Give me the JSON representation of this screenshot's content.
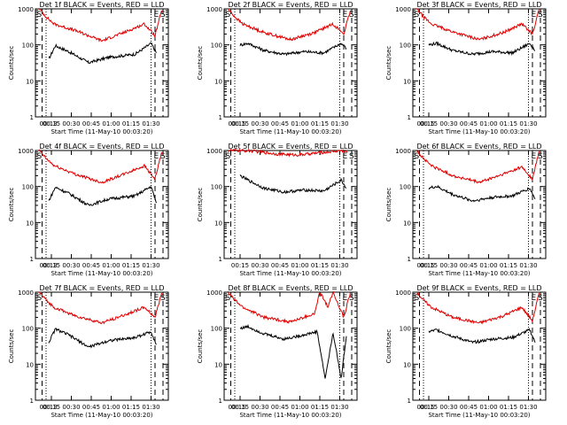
{
  "colors": {
    "events": "#000000",
    "lld": "#e00000",
    "axis": "#000000"
  },
  "shared": {
    "ylabel": "Counts/sec",
    "xlabel": "Start Time (11-May-10 00:03:20)",
    "x_ticks": [
      "00:15",
      "00:30",
      "00:45",
      "01:00",
      "01:15",
      "01:30"
    ],
    "y_ticks": [
      "1",
      "10",
      "100",
      "1000"
    ],
    "y_scale": "log",
    "ylim": [
      1,
      1000
    ]
  },
  "chart_data": [
    {
      "type": "line",
      "title": "Det 1f BLACK = Events, RED = LLD",
      "markers": [
        "S",
        "E",
        "S"
      ],
      "start_label": "00:13",
      "xlabel": "Start Time (11-May-10 00:03:20)",
      "ylabel": "Counts/sec",
      "series": [
        {
          "name": "Events",
          "x_min": [
            10,
            15,
            25,
            40,
            55,
            75,
            87,
            91
          ],
          "values": [
            40,
            95,
            65,
            32,
            45,
            55,
            110,
            60
          ]
        },
        {
          "name": "LLD",
          "x_min": [
            3,
            8,
            14,
            30,
            50,
            68,
            82,
            90,
            95
          ],
          "values": [
            1000,
            600,
            380,
            250,
            130,
            230,
            380,
            180,
            900
          ]
        }
      ]
    },
    {
      "type": "line",
      "title": "Det 2f BLACK = Events, RED = LLD",
      "markers": [
        "S",
        "E",
        "S"
      ],
      "start_label": "00:15",
      "xlabel": "Start Time (11-May-10 00:03:20)",
      "ylabel": "Counts/sec",
      "series": [
        {
          "name": "Events",
          "x_min": [
            12,
            18,
            30,
            45,
            60,
            75,
            88,
            92
          ],
          "values": [
            100,
            110,
            70,
            55,
            65,
            60,
            110,
            80
          ]
        },
        {
          "name": "LLD",
          "x_min": [
            3,
            8,
            14,
            30,
            50,
            68,
            82,
            90,
            95
          ],
          "values": [
            1000,
            600,
            380,
            220,
            140,
            220,
            380,
            200,
            900
          ]
        }
      ]
    },
    {
      "type": "line",
      "title": "Det 3f BLACK = Events, RED = LLD",
      "markers": [
        "S",
        "E",
        "S"
      ],
      "start_label": "00:15",
      "xlabel": "Start Time (11-May-10 00:03:20)",
      "ylabel": "Counts/sec",
      "series": [
        {
          "name": "Events",
          "x_min": [
            12,
            18,
            30,
            45,
            60,
            75,
            88,
            92
          ],
          "values": [
            100,
            110,
            70,
            55,
            65,
            60,
            110,
            70
          ]
        },
        {
          "name": "LLD",
          "x_min": [
            3,
            8,
            14,
            30,
            50,
            68,
            82,
            90,
            95
          ],
          "values": [
            1000,
            600,
            380,
            230,
            140,
            220,
            380,
            200,
            950
          ]
        }
      ]
    },
    {
      "type": "line",
      "title": "Det 4f BLACK = Events, RED = LLD",
      "markers": [
        "S",
        "E",
        "S"
      ],
      "start_label": "00:13",
      "xlabel": "Start Time (11-May-10 00:03:20)",
      "ylabel": "Counts/sec",
      "series": [
        {
          "name": "Events",
          "x_min": [
            10,
            15,
            25,
            40,
            55,
            75,
            87,
            91
          ],
          "values": [
            40,
            95,
            65,
            30,
            45,
            55,
            100,
            35
          ]
        },
        {
          "name": "LLD",
          "x_min": [
            3,
            8,
            14,
            30,
            50,
            68,
            82,
            90,
            95
          ],
          "values": [
            1000,
            600,
            380,
            220,
            130,
            230,
            380,
            160,
            900
          ]
        }
      ]
    },
    {
      "type": "line",
      "title": "Det 5f BLACK = Events, RED = LLD",
      "markers": [
        "S",
        "E",
        "S"
      ],
      "start_label": "",
      "xlabel": "Start Time (11-May-10 00:03:20)",
      "ylabel": "Counts/sec",
      "series": [
        {
          "name": "Events",
          "x_min": [
            12,
            18,
            30,
            45,
            60,
            75,
            88,
            92
          ],
          "values": [
            200,
            150,
            90,
            70,
            80,
            75,
            150,
            90
          ]
        },
        {
          "name": "LLD",
          "x_min": [
            3,
            10,
            20,
            40,
            55,
            70,
            88,
            93
          ],
          "values": [
            1000,
            1000,
            980,
            800,
            750,
            850,
            1000,
            900
          ]
        }
      ]
    },
    {
      "type": "line",
      "title": "Det 6f BLACK = Events, RED = LLD",
      "markers": [
        "S",
        "E",
        "S"
      ],
      "start_label": "00:15",
      "xlabel": "Start Time (11-May-10 00:03:20)",
      "ylabel": "Counts/sec",
      "series": [
        {
          "name": "Events",
          "x_min": [
            12,
            18,
            30,
            45,
            60,
            75,
            88,
            92
          ],
          "values": [
            90,
            100,
            60,
            40,
            50,
            55,
            90,
            45
          ]
        },
        {
          "name": "LLD",
          "x_min": [
            3,
            8,
            14,
            30,
            50,
            68,
            82,
            90,
            95
          ],
          "values": [
            1000,
            600,
            380,
            200,
            130,
            220,
            350,
            160,
            950
          ]
        }
      ]
    },
    {
      "type": "line",
      "title": "Det 7f BLACK = Events, RED = LLD",
      "markers": [
        "S",
        "E",
        "S"
      ],
      "start_label": "00:13",
      "xlabel": "Start Time (11-May-10 00:03:20)",
      "ylabel": "Counts/sec",
      "series": [
        {
          "name": "Events",
          "x_min": [
            10,
            15,
            25,
            40,
            55,
            75,
            87,
            91
          ],
          "values": [
            40,
            95,
            65,
            30,
            45,
            55,
            80,
            35
          ]
        },
        {
          "name": "LLD",
          "x_min": [
            3,
            8,
            14,
            30,
            50,
            68,
            82,
            90,
            95
          ],
          "values": [
            1000,
            600,
            380,
            220,
            140,
            240,
            380,
            200,
            950
          ]
        }
      ]
    },
    {
      "type": "line",
      "title": "Det 8f BLACK = Events, RED = LLD",
      "markers": [
        "S",
        "E",
        "S"
      ],
      "start_label": "00:15",
      "xlabel": "Start Time (11-May-10 00:03:20)",
      "ylabel": "Counts/sec",
      "series": [
        {
          "name": "Events",
          "x_min": [
            12,
            18,
            30,
            45,
            60,
            70,
            76,
            82,
            88,
            92
          ],
          "values": [
            100,
            110,
            70,
            50,
            65,
            80,
            4,
            75,
            4,
            60
          ]
        },
        {
          "name": "LLD",
          "x_min": [
            3,
            8,
            14,
            30,
            50,
            68,
            72,
            78,
            82,
            90,
            95
          ],
          "values": [
            1000,
            600,
            380,
            200,
            150,
            250,
            1000,
            400,
            1000,
            200,
            1000
          ]
        }
      ]
    },
    {
      "type": "line",
      "title": "Det 9f BLACK = Events, RED = LLD",
      "markers": [
        "S",
        "E",
        "S"
      ],
      "start_label": "00:15",
      "xlabel": "Start Time (11-May-10 00:03:20)",
      "ylabel": "Counts/sec",
      "series": [
        {
          "name": "Events",
          "x_min": [
            12,
            18,
            30,
            45,
            60,
            75,
            88,
            92
          ],
          "values": [
            80,
            90,
            60,
            40,
            50,
            55,
            90,
            40
          ]
        },
        {
          "name": "LLD",
          "x_min": [
            3,
            8,
            14,
            30,
            50,
            68,
            82,
            90,
            95
          ],
          "values": [
            1000,
            600,
            380,
            200,
            140,
            220,
            380,
            160,
            950
          ]
        }
      ]
    }
  ]
}
